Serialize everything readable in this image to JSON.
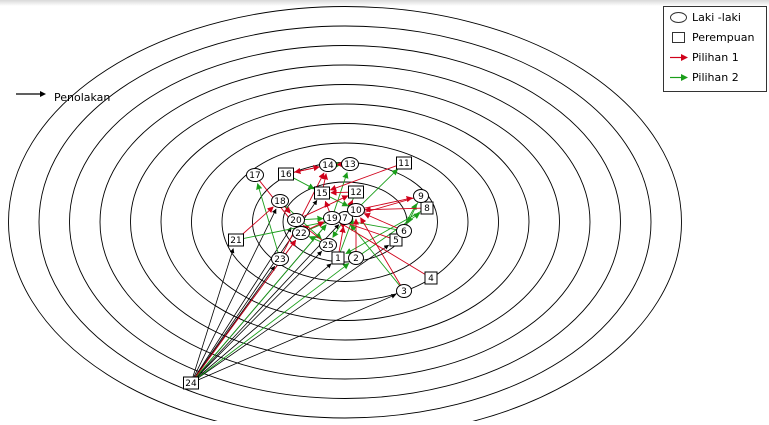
{
  "legend": {
    "items": [
      {
        "symbol": "circle",
        "label": "Laki -laki"
      },
      {
        "symbol": "square",
        "label": "Perempuan"
      },
      {
        "symbol": "arrow",
        "color": "#d0021b",
        "label": "Pilihan 1"
      },
      {
        "symbol": "arrow",
        "color": "#1a9e1a",
        "label": "Pilihan 2"
      }
    ]
  },
  "rejection_label": "Penolakan",
  "colors": {
    "choice1": "#d0021b",
    "choice2": "#1a9e1a",
    "rejection": "#000000",
    "rings": "#000000"
  },
  "ring_count": 10,
  "nodes": [
    {
      "id": "1",
      "shape": "square"
    },
    {
      "id": "2",
      "shape": "circle"
    },
    {
      "id": "3",
      "shape": "circle"
    },
    {
      "id": "4",
      "shape": "square"
    },
    {
      "id": "5",
      "shape": "square"
    },
    {
      "id": "6",
      "shape": "circle"
    },
    {
      "id": "7",
      "shape": "circle"
    },
    {
      "id": "8",
      "shape": "square"
    },
    {
      "id": "9",
      "shape": "circle"
    },
    {
      "id": "10",
      "shape": "circle"
    },
    {
      "id": "11",
      "shape": "square"
    },
    {
      "id": "12",
      "shape": "square"
    },
    {
      "id": "13",
      "shape": "circle"
    },
    {
      "id": "14",
      "shape": "circle"
    },
    {
      "id": "15",
      "shape": "square"
    },
    {
      "id": "16",
      "shape": "square"
    },
    {
      "id": "17",
      "shape": "circle"
    },
    {
      "id": "18",
      "shape": "circle"
    },
    {
      "id": "19",
      "shape": "circle"
    },
    {
      "id": "20",
      "shape": "circle"
    },
    {
      "id": "21",
      "shape": "square"
    },
    {
      "id": "22",
      "shape": "circle"
    },
    {
      "id": "23",
      "shape": "circle"
    },
    {
      "id": "24",
      "shape": "square"
    },
    {
      "id": "25",
      "shape": "circle"
    }
  ],
  "edges": {
    "choice1": [
      [
        "1",
        "7"
      ],
      [
        "2",
        "10"
      ],
      [
        "3",
        "10"
      ],
      [
        "4",
        "19"
      ],
      [
        "5",
        "19"
      ],
      [
        "6",
        "10"
      ],
      [
        "8",
        "10"
      ],
      [
        "9",
        "7"
      ],
      [
        "11",
        "15"
      ],
      [
        "12",
        "15"
      ],
      [
        "13",
        "14"
      ],
      [
        "15",
        "14"
      ],
      [
        "16",
        "14"
      ],
      [
        "17",
        "22"
      ],
      [
        "18",
        "20"
      ],
      [
        "19",
        "15"
      ],
      [
        "20",
        "12"
      ],
      [
        "22",
        "19"
      ],
      [
        "23",
        "14"
      ],
      [
        "25",
        "20"
      ],
      [
        "7",
        "12"
      ],
      [
        "10",
        "9"
      ],
      [
        "21",
        "18"
      ],
      [
        "24",
        "22"
      ],
      [
        "14",
        "16"
      ]
    ],
    "choice2": [
      [
        "1",
        "10"
      ],
      [
        "2",
        "8"
      ],
      [
        "3",
        "7"
      ],
      [
        "5",
        "9"
      ],
      [
        "6",
        "19"
      ],
      [
        "7",
        "25"
      ],
      [
        "8",
        "1"
      ],
      [
        "9",
        "6"
      ],
      [
        "10",
        "11"
      ],
      [
        "12",
        "7"
      ],
      [
        "14",
        "13"
      ],
      [
        "15",
        "10"
      ],
      [
        "16",
        "15"
      ],
      [
        "18",
        "25"
      ],
      [
        "19",
        "13"
      ],
      [
        "20",
        "19"
      ],
      [
        "21",
        "7"
      ],
      [
        "22",
        "10"
      ],
      [
        "23",
        "17"
      ],
      [
        "25",
        "22"
      ],
      [
        "24",
        "19"
      ],
      [
        "24",
        "2"
      ]
    ],
    "rejection": [
      [
        "24",
        "1"
      ],
      [
        "24",
        "3"
      ],
      [
        "24",
        "5"
      ],
      [
        "24",
        "20"
      ],
      [
        "24",
        "21"
      ],
      [
        "24",
        "22"
      ],
      [
        "24",
        "23"
      ],
      [
        "24",
        "18"
      ],
      [
        "24",
        "25"
      ],
      [
        "24",
        "19"
      ],
      [
        "24",
        "15"
      ],
      [
        "24",
        "7"
      ]
    ]
  }
}
